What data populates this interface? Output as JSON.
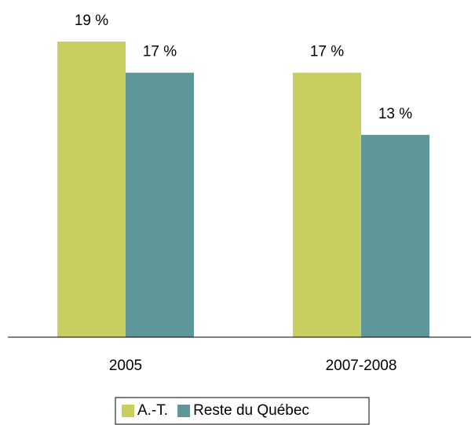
{
  "chart_data": {
    "type": "bar",
    "categories": [
      "2005",
      "2007-2008"
    ],
    "series": [
      {
        "name": "A.-T.",
        "color": "#c8cf5f",
        "values": [
          19,
          17
        ],
        "value_labels": [
          "19 %",
          "17 %"
        ]
      },
      {
        "name": "Reste du Québec",
        "color": "#5f9699",
        "values": [
          17,
          13
        ],
        "value_labels": [
          "17 %",
          "13 %"
        ]
      }
    ],
    "legend": "bottom"
  }
}
